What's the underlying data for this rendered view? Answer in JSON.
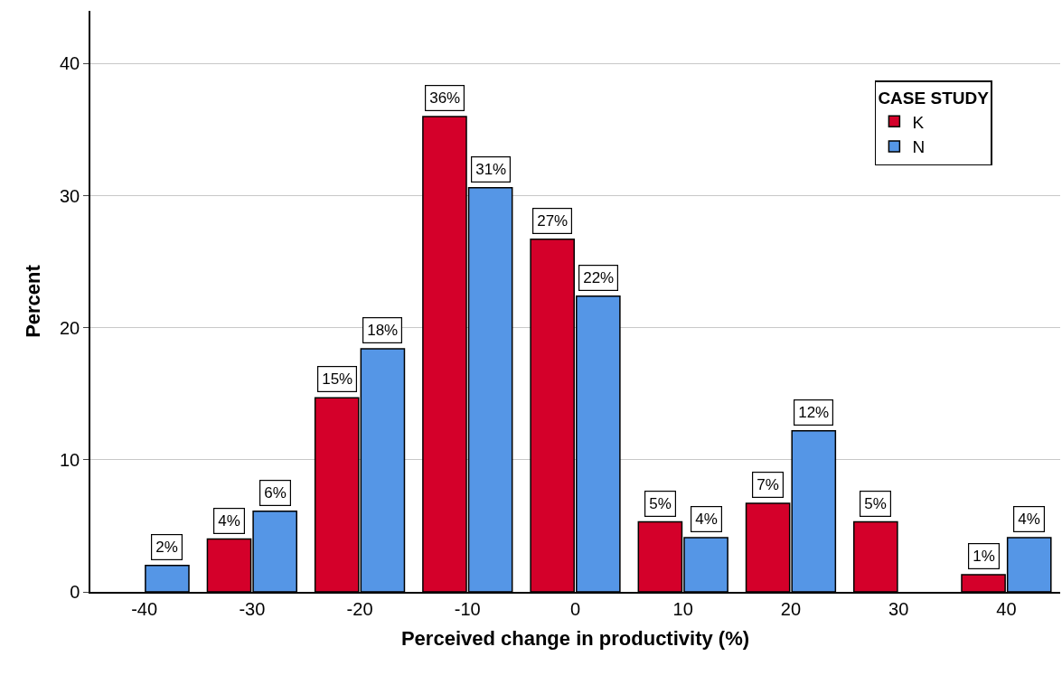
{
  "chart_data": {
    "type": "bar",
    "xlabel": "Perceived change in productivity (%)",
    "ylabel": "Percent",
    "legend_title": "CASE STUDY",
    "categories": [
      "-40",
      "-30",
      "-20",
      "-10",
      "0",
      "10",
      "20",
      "30",
      "40"
    ],
    "series": [
      {
        "name": "K",
        "color": "#d4002a",
        "values": [
          null,
          4.0,
          14.7,
          36.0,
          26.7,
          5.3,
          6.7,
          5.3,
          1.3
        ],
        "value_labels": [
          null,
          "4%",
          "15%",
          "36%",
          "27%",
          "5%",
          "7%",
          "5%",
          "1%"
        ]
      },
      {
        "name": "N",
        "color": "#5596e6",
        "values": [
          2.0,
          6.1,
          18.4,
          30.6,
          22.4,
          4.1,
          12.2,
          null,
          4.1
        ],
        "value_labels": [
          "2%",
          "6%",
          "18%",
          "31%",
          "22%",
          "4%",
          "12%",
          null,
          "4%"
        ]
      }
    ],
    "ylim": [
      0,
      44
    ],
    "yticks": [
      0,
      10,
      20,
      30,
      40
    ],
    "grid": "y",
    "legend": "top right"
  }
}
